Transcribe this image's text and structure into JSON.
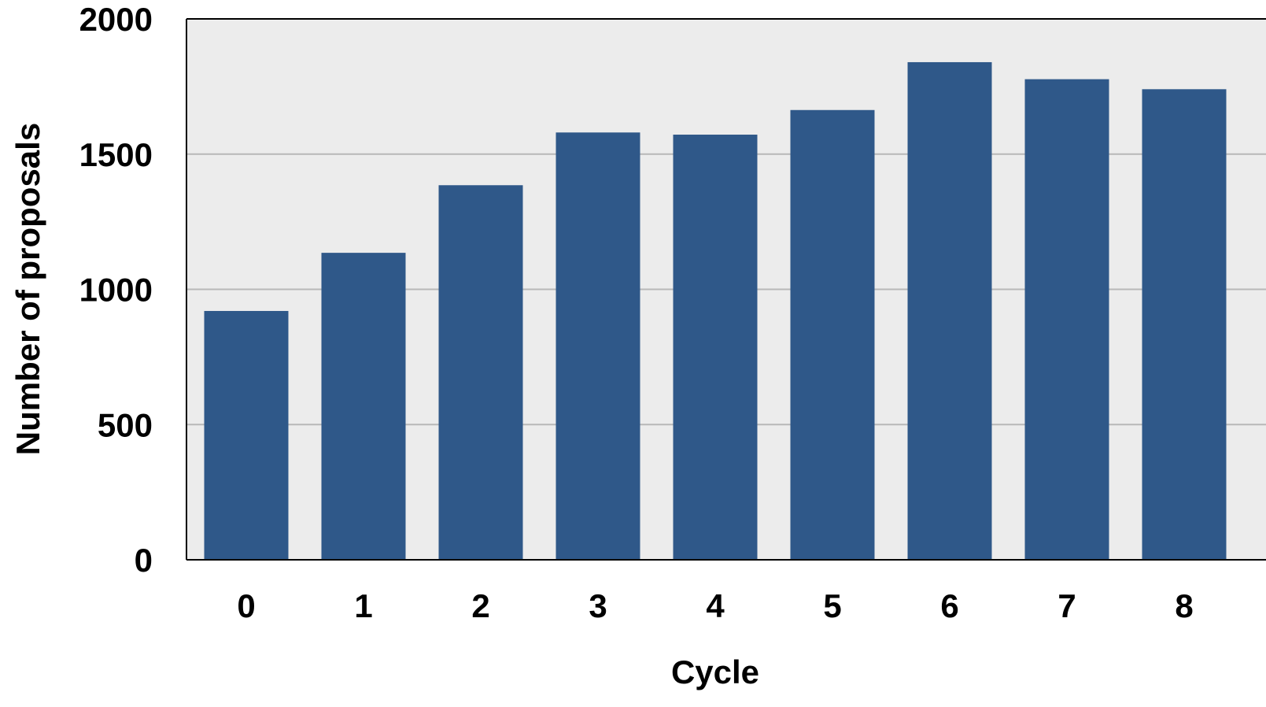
{
  "chart_data": {
    "type": "bar",
    "title": "",
    "xlabel": "Cycle",
    "ylabel": "Number of proposals",
    "categories": [
      "0",
      "1",
      "2",
      "3",
      "4",
      "5",
      "6",
      "7",
      "8"
    ],
    "values": [
      920,
      1135,
      1385,
      1580,
      1572,
      1663,
      1840,
      1777,
      1740
    ],
    "ylim": [
      0,
      2000
    ],
    "yticks": [
      "0",
      "500",
      "1000",
      "1500",
      "2000"
    ],
    "grid": true,
    "colors": {
      "bar": "#2f5889",
      "plot_background": "#ececec",
      "grid": "#b8b8b8",
      "axis": "#000000"
    }
  }
}
